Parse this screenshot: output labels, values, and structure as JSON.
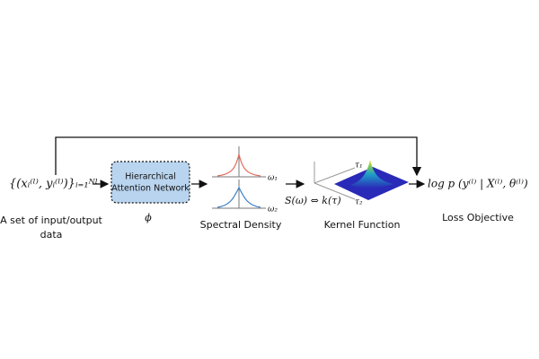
{
  "input": {
    "math": "{(xᵢ⁽ˡ⁾, yᵢ⁽ˡ⁾)}ᵢ₌₁ᴺˡ",
    "caption": [
      "A set of input/output",
      "data"
    ]
  },
  "network": {
    "label": [
      "Hierarchical",
      "Attention Network"
    ],
    "caption": "ϕ"
  },
  "spectral": {
    "omega1": "ω₁",
    "omega2": "ω₂",
    "caption": "Spectral Density"
  },
  "relation": "S(ω) ⇔ k(τ)",
  "kernel": {
    "tau1": "τ₁",
    "tau2": "τ₂",
    "caption": "Kernel Function"
  },
  "loss": {
    "math": "log p (y⁽ˡ⁾ | X⁽ˡ⁾, θ⁽ˡ⁾)",
    "caption": "Loss Objective"
  }
}
